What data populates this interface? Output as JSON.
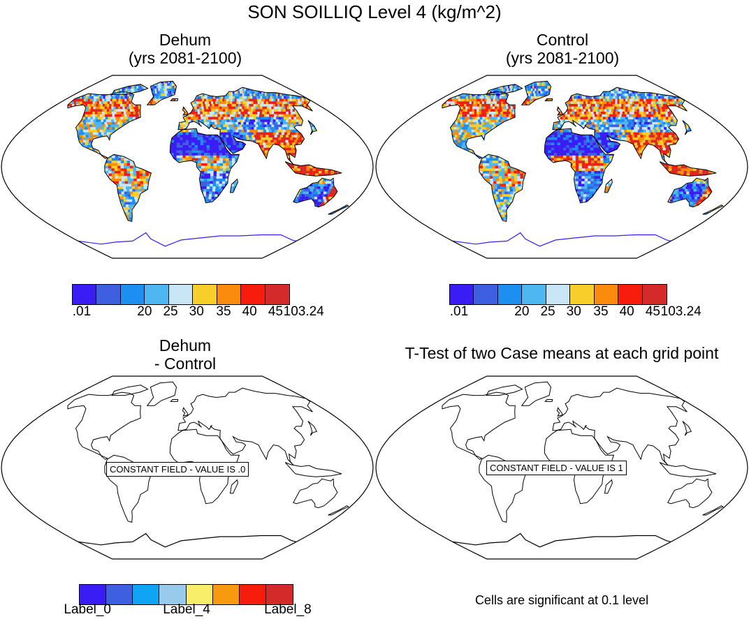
{
  "title": "SON SOILLIQ Level 4 (kg/m^2)",
  "panels": [
    {
      "title_line1": "Dehum",
      "title_line2": "(yrs 2081-2100)",
      "type": "filled"
    },
    {
      "title_line1": "Control",
      "title_line2": "(yrs 2081-2100)",
      "type": "filled"
    },
    {
      "title_line1": "Dehum",
      "title_line2": "- Control",
      "type": "constant",
      "constant_label": "CONSTANT FIELD - VALUE IS .0"
    },
    {
      "title_line1": "T-Test of two Case means at each grid point",
      "title_line2": "",
      "type": "constant",
      "constant_label": "CONSTANT FIELD - VALUE IS 1"
    }
  ],
  "colorbar_top": {
    "colors": [
      "#3a1cf5",
      "#3d5fe0",
      "#1d8ff0",
      "#4eb6f0",
      "#c8e6f5",
      "#f8cf2a",
      "#fb8b0c",
      "#f81c0c",
      "#d42a2a"
    ],
    "labels": [
      ".01",
      "20",
      "25",
      "30",
      "35",
      "40",
      "45",
      "103.24"
    ]
  },
  "colorbar_bottom": {
    "colors": [
      "#3a1cf5",
      "#3d5fe0",
      "#10a4f5",
      "#98cbeb",
      "#f8ee6a",
      "#f89a10",
      "#f81c0c",
      "#d42a2a"
    ],
    "labels": [
      "Label_0",
      "Label_4",
      "Label_8"
    ]
  },
  "footnote": "Cells are significant at 0.1 level"
}
